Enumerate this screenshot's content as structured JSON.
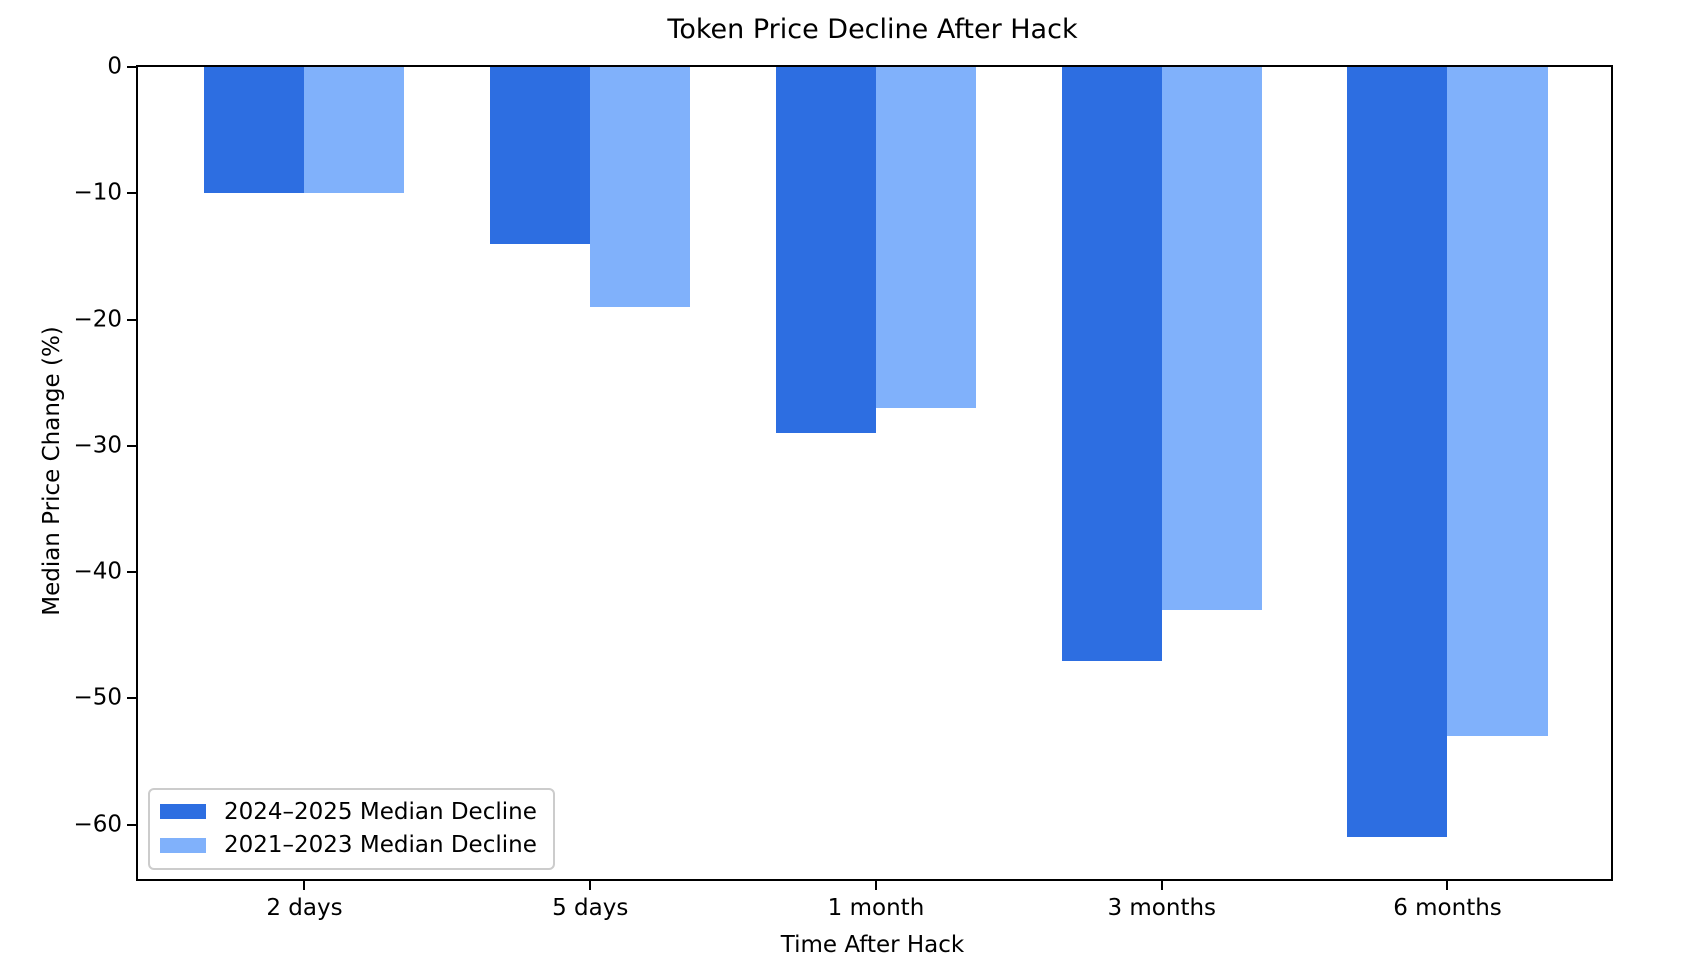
{
  "title": "Token Price Decline After Hack",
  "chart_data": {
    "type": "bar",
    "orientation": "vertical",
    "title": "Token Price Decline After Hack",
    "xlabel": "Time After Hack",
    "ylabel": "Median Price Change (%)",
    "categories": [
      "2 days",
      "5 days",
      "1 month",
      "3 months",
      "6 months"
    ],
    "series": [
      {
        "name": "2024–2025 Median Decline",
        "color": "#2D6EE1",
        "values": [
          -10,
          -14,
          -29,
          -47,
          -61
        ]
      },
      {
        "name": "2021–2023 Median Decline",
        "color": "#80B1FB",
        "values": [
          -10,
          -19,
          -27,
          -43,
          -53
        ]
      }
    ],
    "ylim": [
      -64.3,
      0
    ],
    "yticks": [
      0,
      -10,
      -20,
      -30,
      -40,
      -50,
      -60
    ],
    "grid": false,
    "legend_position": "lower left",
    "axis_color": "#000000",
    "background_color": "#ffffff"
  }
}
